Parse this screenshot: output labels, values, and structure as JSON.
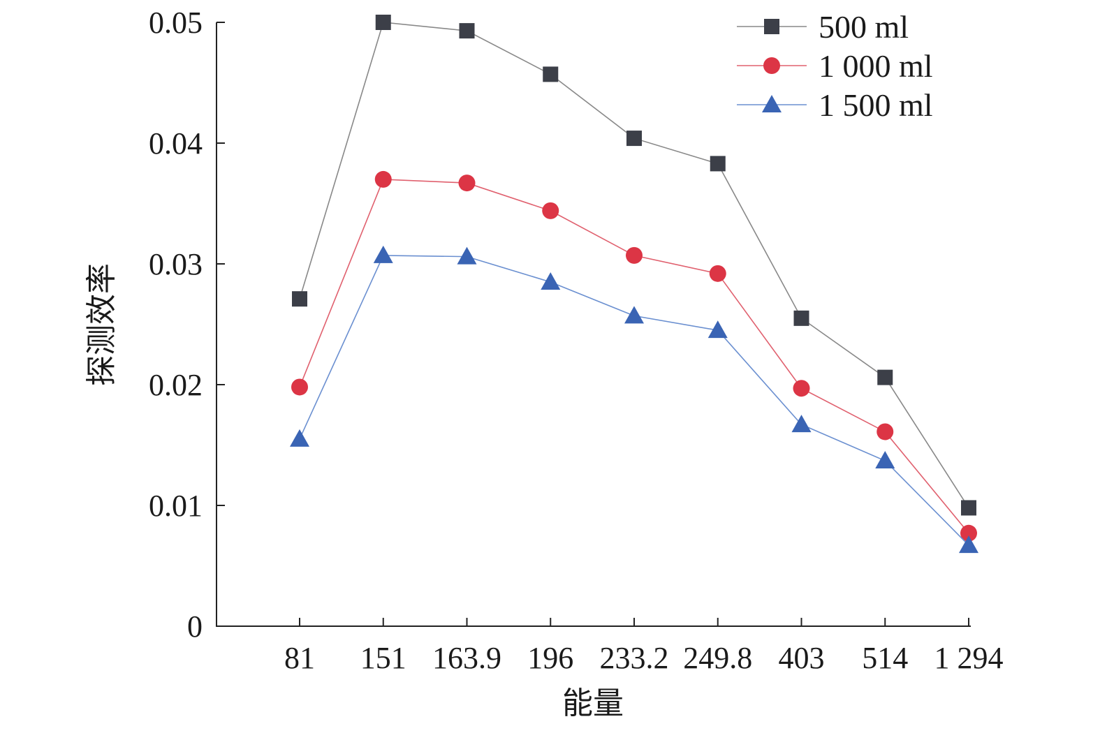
{
  "chart_data": {
    "type": "line",
    "title": "",
    "xlabel": "能量",
    "ylabel": "探测效率",
    "categories": [
      "81",
      "151",
      "163.9",
      "196",
      "233.2",
      "249.8",
      "403",
      "514",
      "1 294"
    ],
    "ylim": [
      0,
      0.05
    ],
    "yticks": [
      {
        "value": 0,
        "label": "0"
      },
      {
        "value": 0.01,
        "label": "0.01"
      },
      {
        "value": 0.02,
        "label": "0.02"
      },
      {
        "value": 0.03,
        "label": "0.03"
      },
      {
        "value": 0.04,
        "label": "0.04"
      },
      {
        "value": 0.05,
        "label": "0.05"
      }
    ],
    "grid": false,
    "legend_position": "top-right",
    "series": [
      {
        "name": "500 ml",
        "marker": "square",
        "line_color": "#888888",
        "marker_color": "#3c3f48",
        "values": [
          0.0271,
          0.05,
          0.0493,
          0.0457,
          0.0404,
          0.0383,
          0.0255,
          0.0206,
          0.0098
        ]
      },
      {
        "name": "1 000 ml",
        "marker": "circle",
        "line_color": "#e0606e",
        "marker_color": "#dc3545",
        "values": [
          0.0198,
          0.037,
          0.0367,
          0.0344,
          0.0307,
          0.0292,
          0.0197,
          0.0161,
          0.0077
        ]
      },
      {
        "name": "1 500 ml",
        "marker": "triangle",
        "line_color": "#6a8fd0",
        "marker_color": "#3a64b4",
        "values": [
          0.0155,
          0.0307,
          0.0306,
          0.0285,
          0.0257,
          0.0245,
          0.0167,
          0.0137,
          0.0067
        ]
      }
    ]
  }
}
